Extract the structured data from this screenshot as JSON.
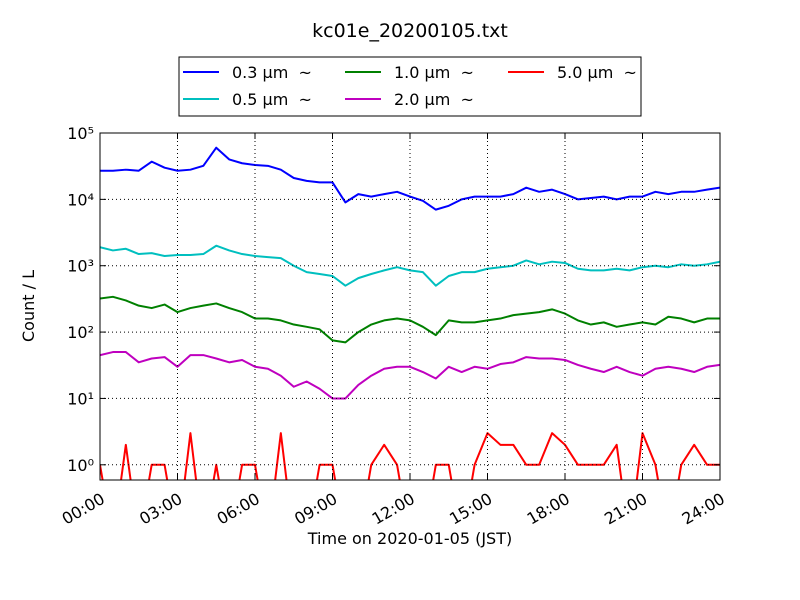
{
  "chart_data": {
    "type": "line",
    "title": "kc01e_20200105.txt",
    "x_label": "Time on 2020-01-05 (JST)",
    "y_label": "Count / L",
    "log_y": true,
    "grid": true,
    "legend": "upper center",
    "x": [
      0,
      0.5,
      1,
      1.5,
      2,
      2.5,
      3,
      3.5,
      4,
      4.5,
      5,
      5.5,
      6,
      6.5,
      7,
      7.5,
      8,
      8.5,
      9,
      9.5,
      10,
      10.5,
      11,
      11.5,
      12,
      12.5,
      13,
      13.5,
      14,
      14.5,
      15,
      15.5,
      16,
      16.5,
      17,
      17.5,
      18,
      18.5,
      19,
      19.5,
      20,
      20.5,
      21,
      21.5,
      22,
      22.5,
      23,
      23.5,
      24
    ],
    "xlim": [
      0,
      24
    ],
    "xticks": [
      {
        "value": 0,
        "label": "00:00"
      },
      {
        "value": 3,
        "label": "03:00"
      },
      {
        "value": 6,
        "label": "06:00"
      },
      {
        "value": 9,
        "label": "09:00"
      },
      {
        "value": 12,
        "label": "12:00"
      },
      {
        "value": 15,
        "label": "15:00"
      },
      {
        "value": 18,
        "label": "18:00"
      },
      {
        "value": 21,
        "label": "21:00"
      },
      {
        "value": 24,
        "label": "24:00"
      }
    ],
    "ylim": [
      0.59,
      100000
    ],
    "yticks": [
      {
        "value": 1,
        "label": "10⁰"
      },
      {
        "value": 10,
        "label": "10¹"
      },
      {
        "value": 100,
        "label": "10²"
      },
      {
        "value": 1000,
        "label": "10³"
      },
      {
        "value": 10000,
        "label": "10⁴"
      },
      {
        "value": 100000,
        "label": "10⁵"
      }
    ],
    "series": [
      {
        "name": "0.3 μm  ~",
        "color": "#0000ff",
        "values": [
          27000,
          27000,
          28000,
          27000,
          37000,
          30000,
          27000,
          28000,
          32000,
          60000,
          40000,
          35000,
          33000,
          32000,
          28000,
          21000,
          19000,
          18000,
          18000,
          9000,
          12000,
          11000,
          12000,
          13000,
          11000,
          9500,
          7000,
          8000,
          10000,
          11000,
          11000,
          11000,
          12000,
          15000,
          13000,
          14000,
          12000,
          10000,
          10500,
          11000,
          10000,
          11000,
          11000,
          13000,
          12000,
          13000,
          13000,
          14000,
          15000
        ]
      },
      {
        "name": "0.5 μm  ~",
        "color": "#00bfbf",
        "values": [
          1900,
          1700,
          1800,
          1500,
          1550,
          1400,
          1450,
          1450,
          1500,
          2000,
          1700,
          1500,
          1400,
          1350,
          1300,
          1000,
          800,
          750,
          700,
          500,
          650,
          750,
          850,
          950,
          850,
          800,
          500,
          700,
          800,
          800,
          900,
          950,
          1000,
          1200,
          1050,
          1150,
          1100,
          900,
          850,
          850,
          900,
          850,
          950,
          1000,
          950,
          1050,
          1000,
          1050,
          1150
        ]
      },
      {
        "name": "1.0 μm  ~",
        "color": "#008000",
        "values": [
          320,
          340,
          300,
          250,
          230,
          260,
          200,
          230,
          250,
          270,
          230,
          200,
          160,
          160,
          150,
          130,
          120,
          110,
          75,
          70,
          100,
          130,
          150,
          160,
          150,
          120,
          90,
          150,
          140,
          140,
          150,
          160,
          180,
          190,
          200,
          220,
          190,
          150,
          130,
          140,
          120,
          130,
          140,
          130,
          170,
          160,
          140,
          160,
          160
        ]
      },
      {
        "name": "2.0 μm  ~",
        "color": "#bf00bf",
        "values": [
          45,
          50,
          50,
          35,
          40,
          42,
          30,
          45,
          45,
          40,
          35,
          38,
          30,
          28,
          22,
          15,
          18,
          14,
          10,
          10,
          16,
          22,
          28,
          30,
          30,
          25,
          20,
          30,
          25,
          30,
          28,
          33,
          35,
          42,
          40,
          40,
          38,
          32,
          28,
          25,
          30,
          25,
          22,
          28,
          30,
          28,
          25,
          30,
          32
        ]
      },
      {
        "name": "5.0 μm  ~",
        "color": "#ff0000",
        "values": [
          1,
          0,
          2,
          0,
          1,
          1,
          0,
          3,
          0,
          1,
          0,
          1,
          1,
          0,
          3,
          0,
          0,
          1,
          1,
          0,
          0,
          1,
          2,
          1,
          0,
          0,
          1,
          1,
          0,
          1,
          3,
          2,
          2,
          1,
          1,
          3,
          2,
          1,
          1,
          1,
          2,
          0,
          3,
          1,
          0,
          1,
          2,
          1,
          1
        ]
      }
    ]
  }
}
